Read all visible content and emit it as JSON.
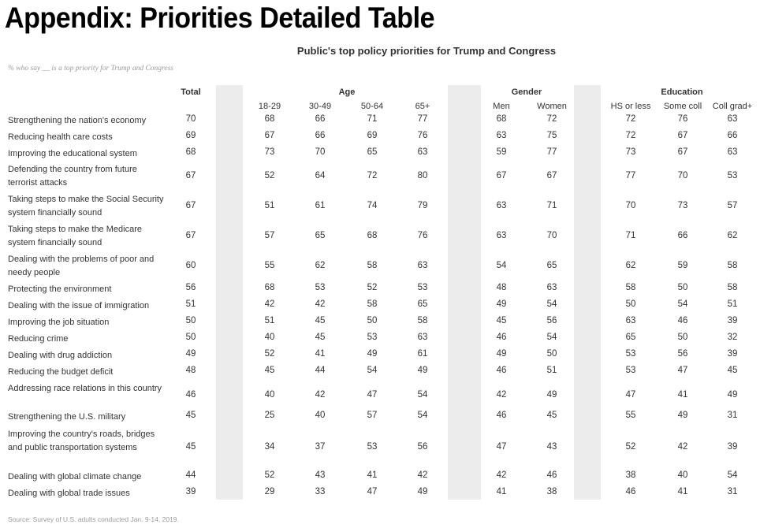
{
  "page_title": "Appendix: Priorities Detailed Table",
  "chart_title": "Public's top policy priorities for Trump and Congress",
  "note": "% who say __ is a top priority for Trump and Congress",
  "source": "Source: Survey of U.S. adults conducted Jan. 9-14, 2019.",
  "groups": {
    "total": "Total",
    "age": "Age",
    "gender": "Gender",
    "education": "Education"
  },
  "columns": [
    "18-29",
    "30-49",
    "50-64",
    "65+",
    "Men",
    "Women",
    "HS or less",
    "Some coll",
    "Coll grad+"
  ],
  "rows": [
    {
      "label": "Strengthening the nation's economy",
      "values": [
        "70",
        "68",
        "66",
        "71",
        "77",
        "68",
        "72",
        "72",
        "76",
        "63"
      ]
    },
    {
      "label": "Reducing health care costs",
      "values": [
        "69",
        "67",
        "66",
        "69",
        "76",
        "63",
        "75",
        "72",
        "67",
        "66"
      ]
    },
    {
      "label": "Improving the educational system",
      "values": [
        "68",
        "73",
        "70",
        "65",
        "63",
        "59",
        "77",
        "73",
        "67",
        "63"
      ]
    },
    {
      "label": "Defending the country from future terrorist attacks",
      "values": [
        "67",
        "52",
        "64",
        "72",
        "80",
        "67",
        "67",
        "77",
        "70",
        "53"
      ]
    },
    {
      "label": "Taking steps to make the Social Security system financially sound",
      "values": [
        "67",
        "51",
        "61",
        "74",
        "79",
        "63",
        "71",
        "70",
        "73",
        "57"
      ]
    },
    {
      "label": "Taking steps to make the Medicare system financially sound",
      "values": [
        "67",
        "57",
        "65",
        "68",
        "76",
        "63",
        "70",
        "71",
        "66",
        "62"
      ]
    },
    {
      "label": "Dealing with the problems of poor and needy people",
      "values": [
        "60",
        "55",
        "62",
        "58",
        "63",
        "54",
        "65",
        "62",
        "59",
        "58"
      ]
    },
    {
      "label": "Protecting the environment",
      "values": [
        "56",
        "68",
        "53",
        "52",
        "53",
        "48",
        "63",
        "58",
        "50",
        "58"
      ]
    },
    {
      "label": "Dealing with the issue of immigration",
      "values": [
        "51",
        "42",
        "42",
        "58",
        "65",
        "49",
        "54",
        "50",
        "54",
        "51"
      ]
    },
    {
      "label": "Improving the job situation",
      "values": [
        "50",
        "51",
        "45",
        "50",
        "58",
        "45",
        "56",
        "63",
        "46",
        "39"
      ]
    },
    {
      "label": "Reducing crime",
      "values": [
        "50",
        "40",
        "45",
        "53",
        "63",
        "46",
        "54",
        "65",
        "50",
        "32"
      ]
    },
    {
      "label": "Dealing with drug addiction",
      "values": [
        "49",
        "52",
        "41",
        "49",
        "61",
        "49",
        "50",
        "53",
        "56",
        "39"
      ]
    },
    {
      "label": "Reducing the budget deficit",
      "values": [
        "48",
        "45",
        "44",
        "54",
        "49",
        "46",
        "51",
        "53",
        "47",
        "45"
      ]
    },
    {
      "label": "Addressing race relations in this country",
      "values": [
        "46",
        "40",
        "42",
        "47",
        "54",
        "42",
        "49",
        "47",
        "41",
        "49"
      ]
    },
    {
      "label": "Strengthening the U.S. military",
      "values": [
        "45",
        "25",
        "40",
        "57",
        "54",
        "46",
        "45",
        "55",
        "49",
        "31"
      ]
    },
    {
      "label": "Improving the country's roads, bridges and public transportation systems",
      "values": [
        "45",
        "34",
        "37",
        "53",
        "56",
        "47",
        "43",
        "52",
        "42",
        "39"
      ]
    },
    {
      "label": "Dealing with global climate change",
      "values": [
        "44",
        "52",
        "43",
        "41",
        "42",
        "42",
        "46",
        "38",
        "40",
        "54"
      ]
    },
    {
      "label": "Dealing with global trade issues",
      "values": [
        "39",
        "29",
        "33",
        "47",
        "49",
        "41",
        "38",
        "46",
        "41",
        "31"
      ]
    }
  ]
}
